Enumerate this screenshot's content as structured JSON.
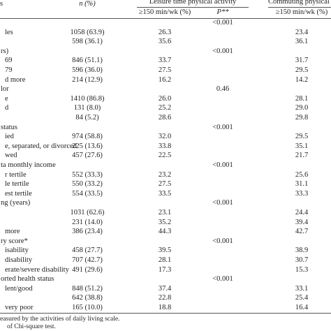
{
  "table": {
    "header": {
      "variable": "s",
      "n": "n (%)",
      "leisure_group": "Leisure time physical activity",
      "leisure_pct": "≥150 min/wk (%)",
      "p": "P**",
      "commuting_group": "Commuting physical a",
      "commuting_pct": "≥150 min/wk (%)"
    },
    "rows": [
      [
        null,
        null,
        null,
        "<0.001",
        null
      ],
      [
        "les",
        "1058 (63.9)",
        "26.3",
        null,
        "23.4"
      ],
      [
        null,
        "598 (36.1)",
        "35.6",
        null,
        "36.1"
      ],
      [
        "rs)",
        null,
        null,
        "<0.001",
        null
      ],
      [
        "69",
        "846 (51.1)",
        "33.7",
        null,
        "31.7"
      ],
      [
        "79",
        "596 (36.0)",
        "27.5",
        null,
        "29.5"
      ],
      [
        "d more",
        "214 (12.9)",
        "16.2",
        null,
        "14.2"
      ],
      [
        "lor",
        null,
        null,
        "0.46",
        null
      ],
      [
        "e",
        "1410 (86.8)",
        "26.0",
        null,
        "28.1"
      ],
      [
        "d",
        "131 (8.0)",
        "25.2",
        null,
        "29.0"
      ],
      [
        null,
        "84 (5.2)",
        "28.6",
        null,
        "29.8"
      ],
      [
        "status",
        null,
        null,
        "<0.001",
        null
      ],
      [
        "ied",
        "974 (58.8)",
        "32.0",
        null,
        "29.5"
      ],
      [
        "e, separated, or divorced",
        "225 (13.6)",
        "33.8",
        null,
        "35.1"
      ],
      [
        "wed",
        "457 (27.6)",
        "22.5",
        null,
        "21.7"
      ],
      [
        "ta monthly income",
        null,
        null,
        "<0.001",
        null
      ],
      [
        "r tertile",
        "552 (33.3)",
        "23.2",
        null,
        "25.6"
      ],
      [
        "le tertile",
        "550 (33.2)",
        "27.5",
        null,
        "31.1"
      ],
      [
        "est tertile",
        "554 (33.5)",
        "33.5",
        null,
        "33.3"
      ],
      [
        "ng (years)",
        null,
        null,
        "<0.001",
        null
      ],
      [
        null,
        "1031 (62.6)",
        "23.1",
        null,
        "24.4"
      ],
      [
        null,
        "231 (14.0)",
        "35.2",
        null,
        "39.4"
      ],
      [
        "more",
        "386 (23.4)",
        "44.3",
        null,
        "42.7"
      ],
      [
        "ry score*",
        null,
        null,
        "<0.001",
        null
      ],
      [
        "isability",
        "458 (27.7)",
        "39.5",
        null,
        "38.9"
      ],
      [
        "disability",
        "707 (42.7)",
        "28.1",
        null,
        "30.7"
      ],
      [
        "erate/severe disability",
        "491 (29.6)",
        "17.3",
        null,
        "15.3"
      ],
      [
        "orted health status",
        null,
        null,
        "<0.001",
        null
      ],
      [
        "lent/good",
        "848 (51.2)",
        "37.4",
        null,
        "33.1"
      ],
      [
        null,
        "642 (38.8)",
        "22.8",
        null,
        "25.4"
      ],
      [
        "very poor",
        "165 (10.0)",
        "18.8",
        null,
        "16.4"
      ]
    ],
    "footnotes": [
      "easured by the activities of daily living scale.",
      "of Chi-square test."
    ]
  }
}
